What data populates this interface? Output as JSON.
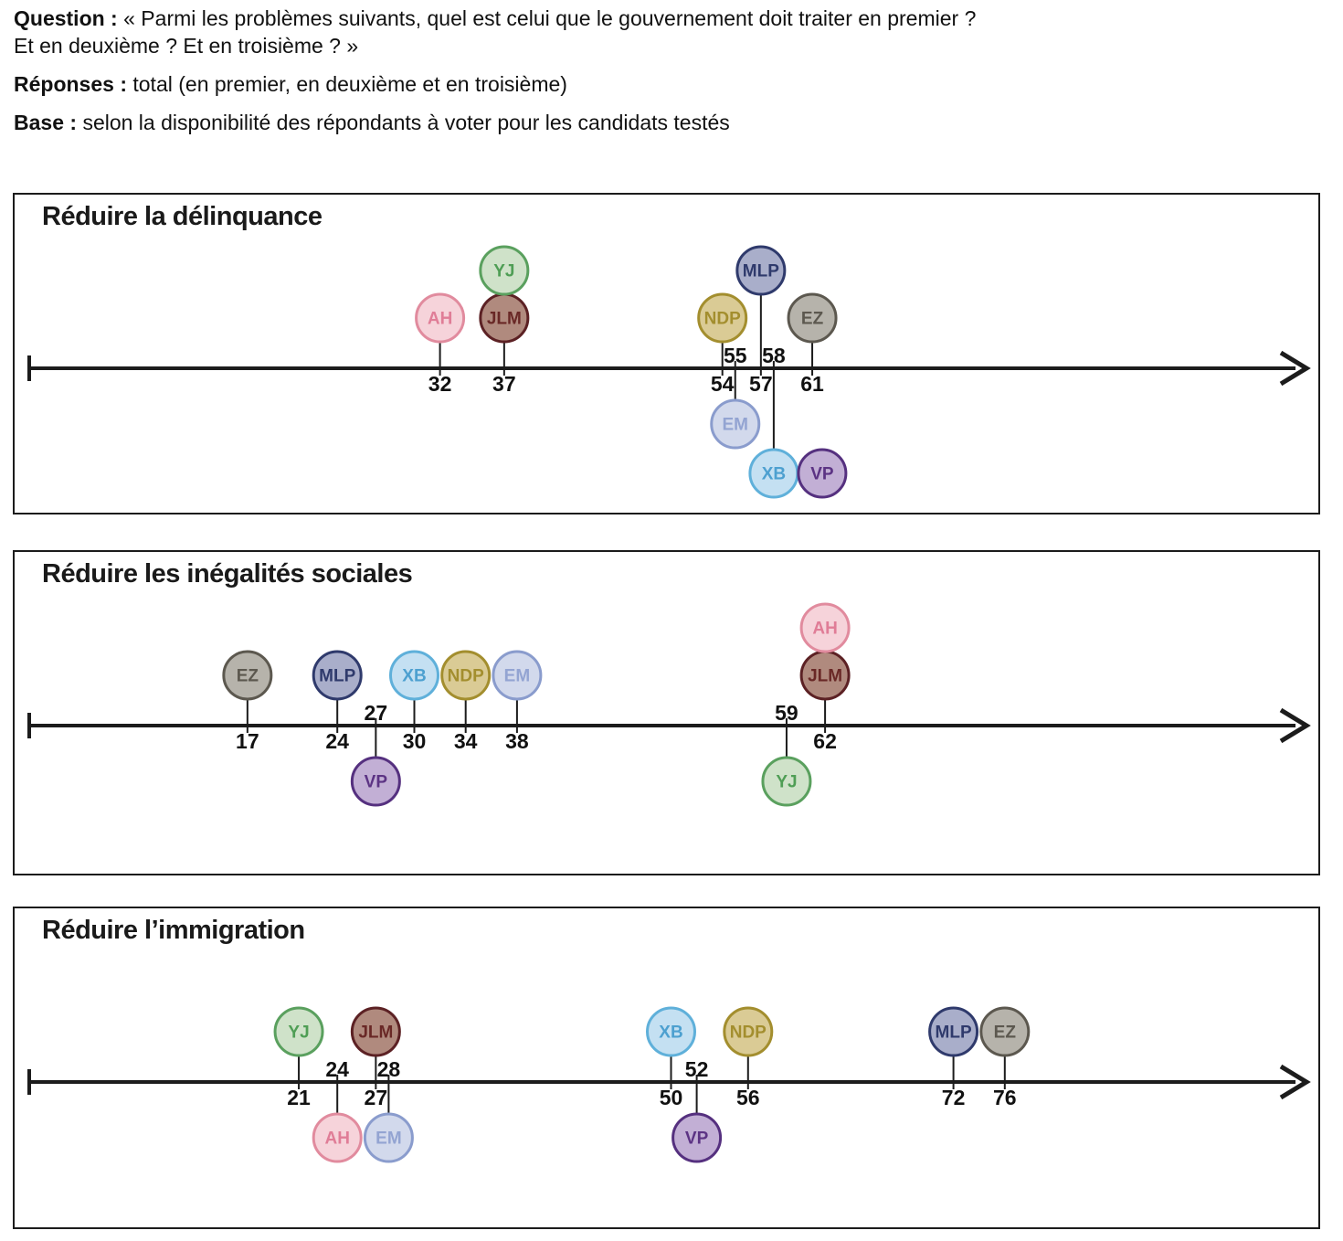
{
  "header": {
    "question_label": "Question :",
    "question_line1": "« Parmi les problèmes suivants, quel est celui que le gouvernement doit traiter en premier ?",
    "question_line2": "Et en deuxième ? Et en troisième ?  »",
    "responses_label": "Réponses :",
    "responses_text": "total (en premier, en deuxième et en troisième)",
    "base_label": "Base :",
    "base_text": "selon la disponibilité des répondants à voter pour les candidats testés"
  },
  "palette": {
    "YJ": {
      "fill": "#cfe2c9",
      "stroke": "#5aa05e",
      "text": "#4f9e55"
    },
    "AH": {
      "fill": "#f6d3da",
      "stroke": "#e18b9e",
      "text": "#e07d97"
    },
    "JLM": {
      "fill": "#b08a7e",
      "stroke": "#5c2124",
      "text": "#692826"
    },
    "MLP": {
      "fill": "#a9aeca",
      "stroke": "#2f3a6c",
      "text": "#2f3a6c"
    },
    "NDP": {
      "fill": "#dacb95",
      "stroke": "#a38e2e",
      "text": "#a38e2e"
    },
    "EZ": {
      "fill": "#b6b3ab",
      "stroke": "#5c584f",
      "text": "#5c584f"
    },
    "EM": {
      "fill": "#d2d9ec",
      "stroke": "#8a9ccd",
      "text": "#93a4d2"
    },
    "XB": {
      "fill": "#c4e0f2",
      "stroke": "#5fb0da",
      "text": "#4da0d0"
    },
    "VP": {
      "fill": "#c2afd5",
      "stroke": "#55307f",
      "text": "#5c3384"
    }
  },
  "axis_color": "#1c1c1c",
  "label_color": "#111111",
  "chart_data": [
    {
      "type": "scatter",
      "title": "Réduire la délinquance",
      "xlim": [
        0,
        100
      ],
      "points": [
        {
          "label": "AH",
          "value": 32,
          "side": "above",
          "level": 1
        },
        {
          "label": "JLM",
          "value": 37,
          "side": "above",
          "level": 1
        },
        {
          "label": "YJ",
          "value": 37,
          "side": "above",
          "level": 2,
          "stacked_on": "JLM"
        },
        {
          "label": "NDP",
          "value": 54,
          "side": "above",
          "level": 1
        },
        {
          "label": "EM",
          "value": 55,
          "side": "below",
          "level": 1
        },
        {
          "label": "MLP",
          "value": 57,
          "side": "above",
          "level": 2
        },
        {
          "label": "XB",
          "value": 58,
          "side": "below",
          "level": 2
        },
        {
          "label": "VP",
          "value": 58,
          "side": "below",
          "level": 2,
          "beside": "XB"
        },
        {
          "label": "EZ",
          "value": 61,
          "side": "above",
          "level": 1
        }
      ]
    },
    {
      "type": "scatter",
      "title": "Réduire les inégalités sociales",
      "xlim": [
        0,
        100
      ],
      "points": [
        {
          "label": "EZ",
          "value": 17,
          "side": "above",
          "level": 1
        },
        {
          "label": "MLP",
          "value": 24,
          "side": "above",
          "level": 1
        },
        {
          "label": "VP",
          "value": 27,
          "side": "below",
          "level": 1
        },
        {
          "label": "XB",
          "value": 30,
          "side": "above",
          "level": 1
        },
        {
          "label": "NDP",
          "value": 34,
          "side": "above",
          "level": 1
        },
        {
          "label": "EM",
          "value": 38,
          "side": "above",
          "level": 1
        },
        {
          "label": "YJ",
          "value": 59,
          "side": "below",
          "level": 1
        },
        {
          "label": "JLM",
          "value": 62,
          "side": "above",
          "level": 1
        },
        {
          "label": "AH",
          "value": 62,
          "side": "above",
          "level": 2,
          "stacked_on": "JLM"
        }
      ]
    },
    {
      "type": "scatter",
      "title": "Réduire l’immigration",
      "xlim": [
        0,
        100
      ],
      "points": [
        {
          "label": "YJ",
          "value": 21,
          "side": "above",
          "level": 1
        },
        {
          "label": "AH",
          "value": 24,
          "side": "below",
          "level": 1
        },
        {
          "label": "JLM",
          "value": 27,
          "side": "above",
          "level": 1
        },
        {
          "label": "EM",
          "value": 28,
          "side": "below",
          "level": 1
        },
        {
          "label": "XB",
          "value": 50,
          "side": "above",
          "level": 1
        },
        {
          "label": "VP",
          "value": 52,
          "side": "below",
          "level": 1
        },
        {
          "label": "NDP",
          "value": 56,
          "side": "above",
          "level": 1
        },
        {
          "label": "MLP",
          "value": 72,
          "side": "above",
          "level": 1
        },
        {
          "label": "EZ",
          "value": 76,
          "side": "above",
          "level": 1
        }
      ]
    }
  ]
}
